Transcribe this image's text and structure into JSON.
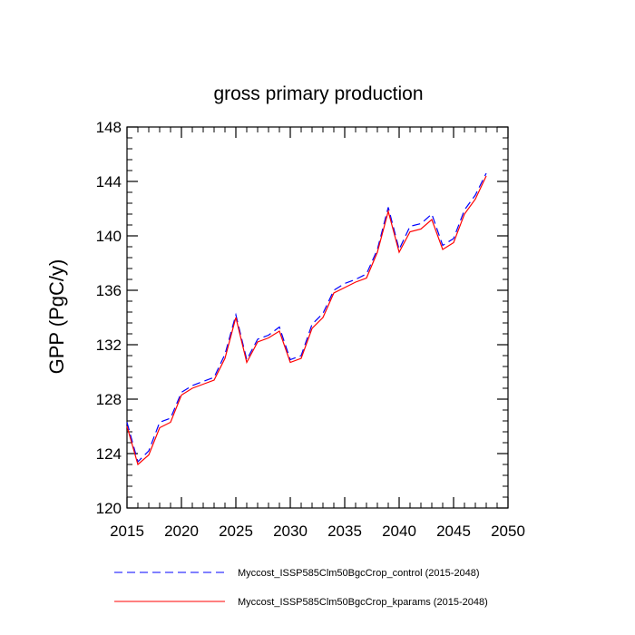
{
  "chart_data": {
    "type": "line",
    "title": "gross primary production",
    "xlabel": "",
    "ylabel": "GPP  (PgC/y)",
    "xlim": [
      2015,
      2050
    ],
    "ylim": [
      120,
      148
    ],
    "xticks": [
      2015,
      2020,
      2025,
      2030,
      2035,
      2040,
      2045,
      2050
    ],
    "yticks": [
      120,
      124,
      128,
      132,
      136,
      140,
      144,
      148
    ],
    "x": [
      2015,
      2016,
      2017,
      2018,
      2019,
      2020,
      2021,
      2022,
      2023,
      2024,
      2025,
      2026,
      2027,
      2028,
      2029,
      2030,
      2031,
      2032,
      2033,
      2034,
      2035,
      2036,
      2037,
      2038,
      2039,
      2040,
      2041,
      2042,
      2043,
      2044,
      2045,
      2046,
      2047,
      2048
    ],
    "series": [
      {
        "name": "Myccost_ISSP585Clm50BgcCrop_control (2015-2048)",
        "color": "#0000ff",
        "dash": "dashed",
        "values": [
          126.3,
          123.4,
          124.2,
          126.3,
          126.6,
          128.5,
          129.0,
          129.3,
          129.6,
          131.3,
          134.2,
          130.9,
          132.4,
          132.7,
          133.3,
          130.9,
          131.2,
          133.5,
          134.3,
          136.0,
          136.5,
          136.8,
          137.2,
          139.0,
          142.1,
          139.0,
          140.7,
          140.9,
          141.6,
          139.3,
          139.8,
          141.9,
          143.0,
          144.6
        ]
      },
      {
        "name": "Myccost_ISSP585Clm50BgcCrop_kparams (2015-2048)",
        "color": "#ff0000",
        "dash": "solid",
        "values": [
          126.0,
          123.2,
          123.9,
          125.9,
          126.3,
          128.3,
          128.8,
          129.1,
          129.4,
          131.0,
          134.0,
          130.7,
          132.2,
          132.5,
          133.0,
          130.7,
          131.0,
          133.2,
          134.0,
          135.8,
          136.2,
          136.6,
          136.9,
          138.8,
          141.8,
          138.8,
          140.3,
          140.5,
          141.2,
          139.0,
          139.5,
          141.6,
          142.7,
          144.4
        ]
      }
    ],
    "legend_position": "bottom",
    "grid": false
  }
}
